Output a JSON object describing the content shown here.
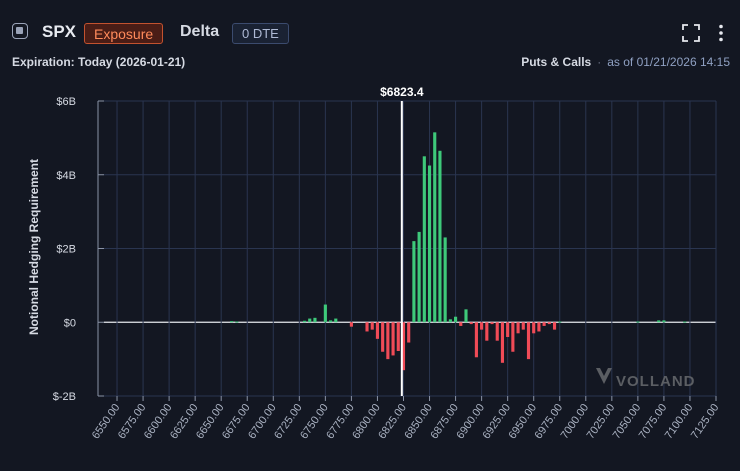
{
  "header": {
    "symbol": "SPX",
    "exposure_label": "Exposure",
    "metric": "Delta",
    "dte_label": "0 DTE",
    "expiration": "Expiration: Today (2026-01-21)",
    "filter": "Puts & Calls",
    "separator": "·",
    "as_of": "as of 01/21/2026 14:15",
    "icons": [
      "fullscreen-icon",
      "more-vertical-icon"
    ]
  },
  "watermark": "VOLLAND",
  "chart_data": {
    "type": "bar",
    "ylabel": "Notional Hedging Requirement",
    "xlabel": "",
    "ylim": [
      -2,
      6
    ],
    "yticks": [
      -2,
      0,
      2,
      4,
      6
    ],
    "ytick_labels": [
      "$-2B",
      "$0",
      "$2B",
      "$4B",
      "$6B"
    ],
    "xlim": [
      6537.5,
      7125
    ],
    "xticks": [
      6550,
      6575,
      6600,
      6625,
      6650,
      6675,
      6700,
      6725,
      6750,
      6775,
      6800,
      6825,
      6850,
      6875,
      6900,
      6925,
      6950,
      6975,
      7000,
      7025,
      7050,
      7075,
      7100,
      7125
    ],
    "xtick_labels": [
      "6550.00",
      "6575.00",
      "6600.00",
      "6625.00",
      "6650.00",
      "6675.00",
      "6700.00",
      "6725.00",
      "6750.00",
      "6775.00",
      "6800.00",
      "6825.00",
      "6850.00",
      "6875.00",
      "6900.00",
      "6925.00",
      "6950.00",
      "6975.00",
      "7000.00",
      "7025.00",
      "7050.00",
      "7075.00",
      "7100.00",
      "7125.00"
    ],
    "spot": 6823.4,
    "spot_label": "$6823.4",
    "grid": true,
    "colors": {
      "positive": "#3ec97a",
      "negative": "#f04b57",
      "spot": "#ffffff",
      "grid": "#2a3550",
      "zero": "#e6e8ee"
    },
    "units": "$B",
    "strikes": [
      6660,
      6665,
      6730,
      6735,
      6740,
      6750,
      6755,
      6760,
      6775,
      6790,
      6795,
      6800,
      6805,
      6810,
      6815,
      6820,
      6825,
      6830,
      6835,
      6840,
      6845,
      6850,
      6855,
      6860,
      6865,
      6870,
      6875,
      6880,
      6885,
      6890,
      6895,
      6900,
      6905,
      6910,
      6915,
      6920,
      6925,
      6930,
      6935,
      6940,
      6945,
      6950,
      6955,
      6960,
      6965,
      6970,
      6975,
      7050,
      7070,
      7075,
      7095
    ],
    "values": [
      0.03,
      0.02,
      0.04,
      0.1,
      0.12,
      0.48,
      0.05,
      0.1,
      -0.12,
      -0.25,
      -0.2,
      -0.45,
      -0.8,
      -1.0,
      -0.9,
      -0.78,
      -1.3,
      -0.55,
      2.2,
      2.45,
      4.5,
      4.25,
      5.15,
      4.65,
      2.3,
      0.08,
      0.15,
      -0.1,
      0.35,
      -0.05,
      -0.95,
      -0.2,
      -0.5,
      -0.05,
      -0.5,
      -1.1,
      -0.4,
      -0.8,
      -0.3,
      -0.2,
      -1.0,
      -0.3,
      -0.25,
      -0.1,
      -0.05,
      -0.2,
      0.02,
      0.02,
      0.05,
      0.05,
      0.02
    ]
  }
}
